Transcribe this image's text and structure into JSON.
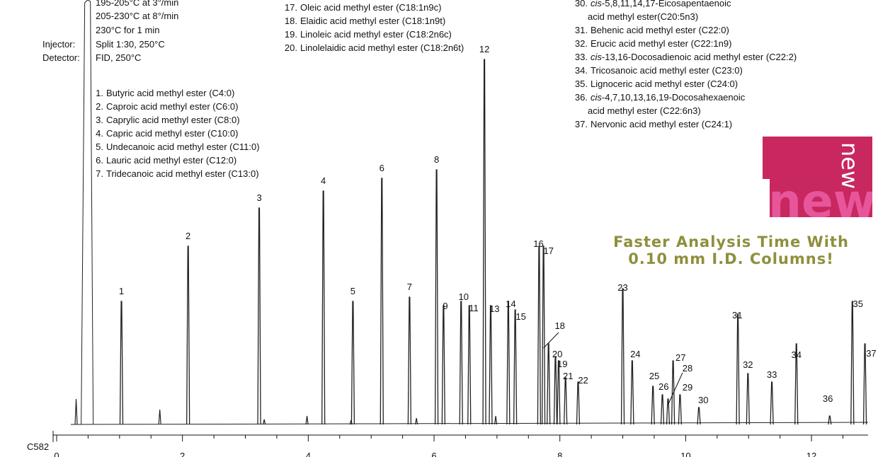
{
  "conditions": [
    {
      "label": "",
      "value": "195-205°C at 3°/min"
    },
    {
      "label": "",
      "value": "205-230°C at 8°/min"
    },
    {
      "label": "",
      "value": "230°C for 1 min"
    },
    {
      "label": "Injector:",
      "value": "Split 1:30, 250°C"
    },
    {
      "label": "Detector:",
      "value": "FID, 250°C"
    }
  ],
  "legend_left": [
    {
      "n": "1.",
      "text": "Butyric acid methyl ester (C4:0)"
    },
    {
      "n": "2.",
      "text": "Caproic acid methyl ester (C6:0)"
    },
    {
      "n": "3.",
      "text": "Caprylic acid methyl ester (C8:0)"
    },
    {
      "n": "4.",
      "text": "Capric acid methyl ester (C10:0)"
    },
    {
      "n": "5.",
      "text": "Undecanoic acid methyl ester (C11:0)"
    },
    {
      "n": "6.",
      "text": "Lauric acid methyl ester (C12:0)"
    },
    {
      "n": "7.",
      "text": "Tridecanoic acid methyl ester (C13:0)"
    }
  ],
  "legend_mid": [
    {
      "n": "17.",
      "text": "Oleic acid methyl ester (C18:1n9c)"
    },
    {
      "n": "18.",
      "text": "Elaidic acid methyl ester (C18:1n9t)"
    },
    {
      "n": "19.",
      "text": "Linoleic acid methyl ester (C18:2n6c)"
    },
    {
      "n": "20.",
      "text": "Linolelaidic acid methyl ester (C18:2n6t)"
    }
  ],
  "legend_right": [
    {
      "n": "30.",
      "prefix": "cis",
      "text": "-5,8,11,14,17-Eicosapentaenoic"
    },
    {
      "n": "",
      "text": "acid methyl ester(C20:5n3)"
    },
    {
      "n": "31.",
      "text": "Behenic acid methyl ester (C22:0)"
    },
    {
      "n": "32.",
      "text": "Erucic acid methyl ester (C22:1n9)"
    },
    {
      "n": "33.",
      "prefix": "cis",
      "text": "-13,16-Docosadienoic acid methyl ester (C22:2)"
    },
    {
      "n": "34.",
      "text": "Tricosanoic acid methyl ester (C23:0)"
    },
    {
      "n": "35.",
      "text": "Lignoceric acid methyl ester (C24:0)"
    },
    {
      "n": "36.",
      "prefix": "cis",
      "text": "-4,7,10,13,16,19-Docosahexaenoic"
    },
    {
      "n": "",
      "text": "acid methyl ester (C22:6n3)"
    },
    {
      "n": "37.",
      "text": "Nervonic acid methyl ester (C24:1)"
    }
  ],
  "badge_text": "new",
  "tagline": [
    "Faster Analysis Time With",
    "0.10 mm I.D. Columns!"
  ],
  "figure_code": "C582",
  "colors": {
    "badge": "#c8285f",
    "badge_letters": "#e7559a",
    "tagline": "#8f8f3e",
    "trace": "#222222"
  },
  "chart_data": {
    "type": "line",
    "title": "",
    "xlabel": "",
    "ylabel": "",
    "xlim": [
      0,
      12.9
    ],
    "ylim": [
      0,
      100
    ],
    "x_ticks": [
      0,
      2,
      4,
      6,
      8,
      10,
      12
    ],
    "grid": false,
    "solvent_peak": {
      "x": 0.48,
      "height": 100
    },
    "minor_peaks": [
      {
        "x": 0.31,
        "height": 6
      },
      {
        "x": 1.64,
        "height": 3.5
      },
      {
        "x": 3.3,
        "height": 1.2
      },
      {
        "x": 3.98,
        "height": 2
      },
      {
        "x": 4.68,
        "height": 1
      },
      {
        "x": 5.72,
        "height": 1.5
      },
      {
        "x": 6.98,
        "height": 2
      }
    ],
    "peaks": [
      {
        "label": "1",
        "x": 1.03,
        "height": 29
      },
      {
        "label": "2",
        "x": 2.09,
        "height": 42
      },
      {
        "label": "3",
        "x": 3.22,
        "height": 51
      },
      {
        "label": "4",
        "x": 4.24,
        "height": 55
      },
      {
        "label": "5",
        "x": 4.71,
        "height": 29
      },
      {
        "label": "6",
        "x": 5.17,
        "height": 58
      },
      {
        "label": "7",
        "x": 5.61,
        "height": 30
      },
      {
        "label": "8",
        "x": 6.04,
        "height": 60
      },
      {
        "label": "9",
        "x": 6.15,
        "height": 28
      },
      {
        "label": "10",
        "x": 6.43,
        "height": 29
      },
      {
        "label": "11",
        "x": 6.56,
        "height": 28
      },
      {
        "label": "12",
        "x": 6.8,
        "height": 86
      },
      {
        "label": "13",
        "x": 6.9,
        "height": 28
      },
      {
        "label": "14",
        "x": 7.18,
        "height": 29
      },
      {
        "label": "15",
        "x": 7.29,
        "height": 27
      },
      {
        "label": "16",
        "x": 7.67,
        "height": 42
      },
      {
        "label": "17",
        "x": 7.74,
        "height": 42
      },
      {
        "label": "18",
        "x": 7.82,
        "height": 19
      },
      {
        "label": "19",
        "x": 7.98,
        "height": 15
      },
      {
        "label": "20",
        "x": 7.93,
        "height": 16
      },
      {
        "label": "21",
        "x": 8.09,
        "height": 11
      },
      {
        "label": "22",
        "x": 8.29,
        "height": 10
      },
      {
        "label": "23",
        "x": 9.0,
        "height": 32
      },
      {
        "label": "24",
        "x": 9.15,
        "height": 15
      },
      {
        "label": "25",
        "x": 9.48,
        "height": 9
      },
      {
        "label": "26",
        "x": 9.63,
        "height": 7
      },
      {
        "label": "27",
        "x": 9.8,
        "height": 15
      },
      {
        "label": "28",
        "x": 9.72,
        "height": 6
      },
      {
        "label": "29",
        "x": 9.91,
        "height": 7
      },
      {
        "label": "30",
        "x": 10.21,
        "height": 4
      },
      {
        "label": "31",
        "x": 10.83,
        "height": 26
      },
      {
        "label": "32",
        "x": 10.99,
        "height": 12
      },
      {
        "label": "33",
        "x": 11.37,
        "height": 10
      },
      {
        "label": "34",
        "x": 11.76,
        "height": 19
      },
      {
        "label": "35",
        "x": 12.65,
        "height": 29
      },
      {
        "label": "36",
        "x": 12.29,
        "height": 2
      },
      {
        "label": "37",
        "x": 12.85,
        "height": 19
      }
    ]
  }
}
